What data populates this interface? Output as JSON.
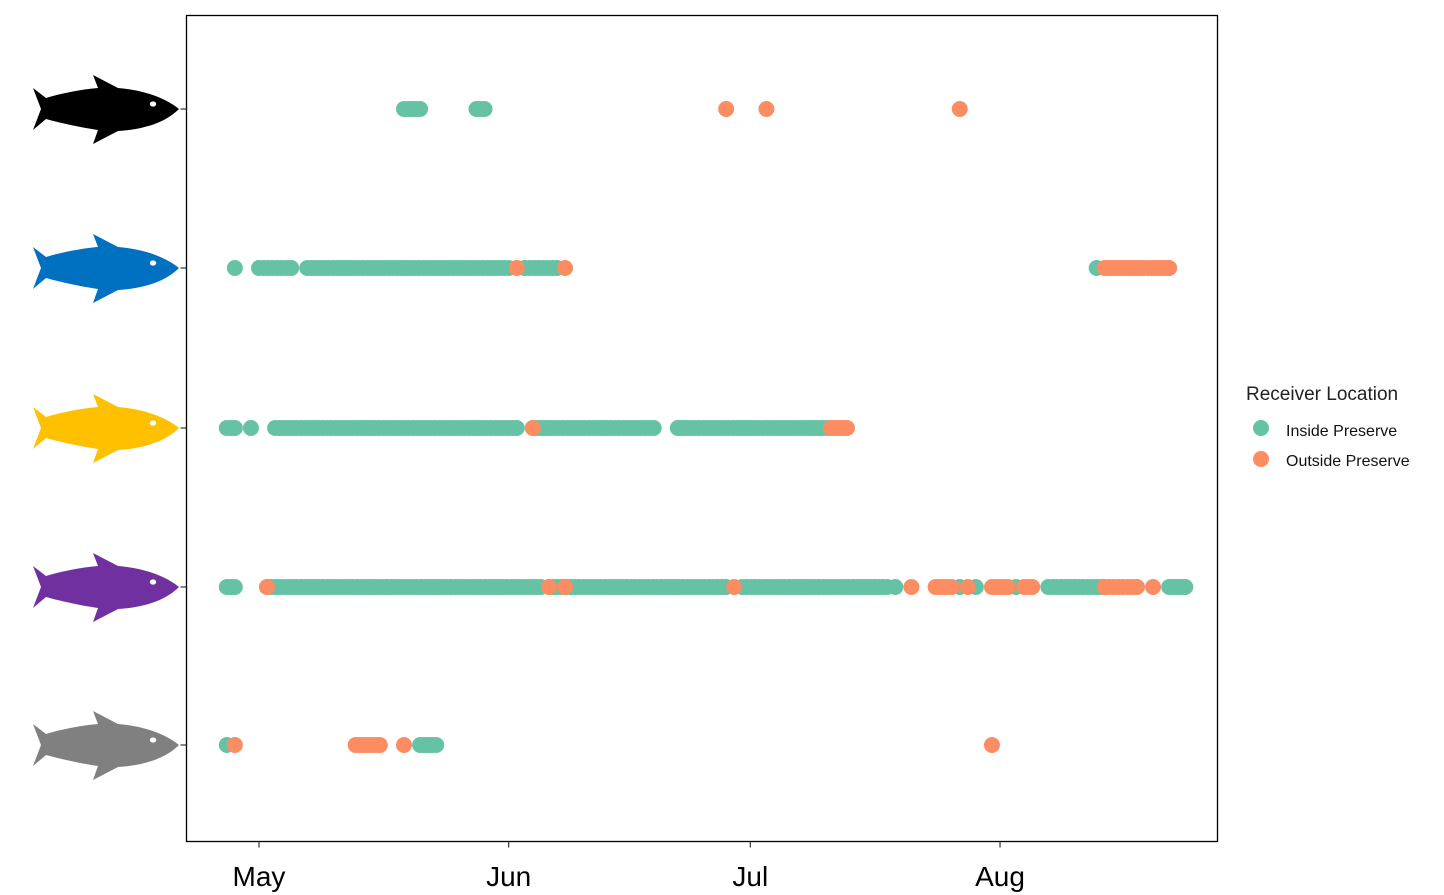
{
  "chart_data": {
    "type": "scatter",
    "title": "",
    "xlabel": "",
    "ylabel": "",
    "x_scale": "date",
    "xlim": [
      "2019-04-22",
      "2019-08-28"
    ],
    "x_ticks": [
      {
        "date": "2019-05-01",
        "label": "May"
      },
      {
        "date": "2019-06-01",
        "label": "Jun"
      },
      {
        "date": "2019-07-01",
        "label": "Jul"
      },
      {
        "date": "2019-08-01",
        "label": "Aug"
      }
    ],
    "grid": false,
    "legend": {
      "title": "Receiver Location",
      "placement": "right",
      "entries": [
        {
          "label": "Inside Preserve",
          "color": "#66c2a5"
        },
        {
          "label": "Outside Preserve",
          "color": "#fc8d62"
        }
      ]
    },
    "fish_icon_colors": [
      "#000000",
      "#0070c0",
      "#ffc000",
      "#7030a0",
      "#808080"
    ],
    "series": [
      {
        "name": "Inside Preserve",
        "color": "#66c2a5",
        "points": [
          {
            "fish": 1,
            "from": "2019-05-19",
            "to": "2019-05-21"
          },
          {
            "fish": 1,
            "from": "2019-05-28",
            "to": "2019-05-29"
          },
          {
            "fish": 2,
            "date": "2019-04-28"
          },
          {
            "fish": 2,
            "from": "2019-05-01",
            "to": "2019-05-05"
          },
          {
            "fish": 2,
            "from": "2019-05-07",
            "to": "2019-06-01"
          },
          {
            "fish": 2,
            "from": "2019-06-03",
            "to": "2019-06-07"
          },
          {
            "fish": 2,
            "date": "2019-08-13"
          },
          {
            "fish": 3,
            "from": "2019-04-27",
            "to": "2019-04-28"
          },
          {
            "fish": 3,
            "date": "2019-04-30"
          },
          {
            "fish": 3,
            "from": "2019-05-03",
            "to": "2019-06-02"
          },
          {
            "fish": 3,
            "from": "2019-06-04",
            "to": "2019-06-19"
          },
          {
            "fish": 3,
            "from": "2019-06-22",
            "to": "2019-07-11"
          },
          {
            "fish": 4,
            "from": "2019-04-27",
            "to": "2019-04-28"
          },
          {
            "fish": 4,
            "from": "2019-05-02",
            "to": "2019-06-05"
          },
          {
            "fish": 4,
            "from": "2019-06-06",
            "to": "2019-06-28"
          },
          {
            "fish": 4,
            "from": "2019-06-30",
            "to": "2019-07-18"
          },
          {
            "fish": 4,
            "date": "2019-07-19"
          },
          {
            "fish": 4,
            "date": "2019-07-27"
          },
          {
            "fish": 4,
            "date": "2019-07-29"
          },
          {
            "fish": 4,
            "date": "2019-08-03"
          },
          {
            "fish": 4,
            "from": "2019-08-07",
            "to": "2019-08-14"
          },
          {
            "fish": 4,
            "from": "2019-08-22",
            "to": "2019-08-24"
          },
          {
            "fish": 5,
            "date": "2019-04-27"
          },
          {
            "fish": 5,
            "from": "2019-05-21",
            "to": "2019-05-23"
          }
        ]
      },
      {
        "name": "Outside Preserve",
        "color": "#fc8d62",
        "points": [
          {
            "fish": 1,
            "date": "2019-06-28"
          },
          {
            "fish": 1,
            "date": "2019-07-03"
          },
          {
            "fish": 1,
            "date": "2019-07-27"
          },
          {
            "fish": 2,
            "date": "2019-06-02"
          },
          {
            "fish": 2,
            "date": "2019-06-08"
          },
          {
            "fish": 2,
            "from": "2019-08-14",
            "to": "2019-08-22"
          },
          {
            "fish": 3,
            "date": "2019-06-04"
          },
          {
            "fish": 3,
            "from": "2019-07-11",
            "to": "2019-07-13"
          },
          {
            "fish": 4,
            "date": "2019-05-02"
          },
          {
            "fish": 4,
            "date": "2019-06-06"
          },
          {
            "fish": 4,
            "date": "2019-06-08"
          },
          {
            "fish": 4,
            "date": "2019-06-29"
          },
          {
            "fish": 4,
            "date": "2019-07-21"
          },
          {
            "fish": 4,
            "from": "2019-07-24",
            "to": "2019-07-26"
          },
          {
            "fish": 4,
            "date": "2019-07-28"
          },
          {
            "fish": 4,
            "from": "2019-07-31",
            "to": "2019-08-02"
          },
          {
            "fish": 4,
            "from": "2019-08-04",
            "to": "2019-08-05"
          },
          {
            "fish": 4,
            "from": "2019-08-14",
            "to": "2019-08-18"
          },
          {
            "fish": 4,
            "date": "2019-08-20"
          },
          {
            "fish": 5,
            "date": "2019-04-28"
          },
          {
            "fish": 5,
            "from": "2019-05-13",
            "to": "2019-05-16"
          },
          {
            "fish": 5,
            "date": "2019-05-19"
          },
          {
            "fish": 5,
            "date": "2019-07-31"
          }
        ]
      }
    ]
  }
}
